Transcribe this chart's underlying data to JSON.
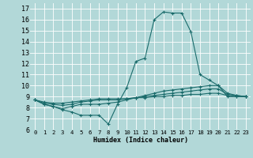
{
  "xlabel": "Humidex (Indice chaleur)",
  "ylabel": "",
  "background_color": "#b2d8d8",
  "grid_color": "#ffffff",
  "line_color": "#1a6b6b",
  "xlim": [
    -0.5,
    23.5
  ],
  "ylim": [
    6.0,
    17.5
  ],
  "xticks": [
    0,
    1,
    2,
    3,
    4,
    5,
    6,
    7,
    8,
    9,
    10,
    11,
    12,
    13,
    14,
    15,
    16,
    17,
    18,
    19,
    20,
    21,
    22,
    23
  ],
  "yticks": [
    6,
    7,
    8,
    9,
    10,
    11,
    12,
    13,
    14,
    15,
    16,
    17
  ],
  "series": [
    [
      8.7,
      8.3,
      8.1,
      7.8,
      7.6,
      7.3,
      7.3,
      7.3,
      6.5,
      8.3,
      9.8,
      12.2,
      12.5,
      16.0,
      16.7,
      16.6,
      16.6,
      14.9,
      11.0,
      10.5,
      10.0,
      9.0,
      9.0,
      9.0
    ],
    [
      8.7,
      8.3,
      8.1,
      7.9,
      8.1,
      8.3,
      8.3,
      8.3,
      8.4,
      8.5,
      8.7,
      8.9,
      9.1,
      9.3,
      9.5,
      9.6,
      9.7,
      9.8,
      9.9,
      10.0,
      10.0,
      9.3,
      9.1,
      9.0
    ],
    [
      8.7,
      8.4,
      8.3,
      8.2,
      8.3,
      8.5,
      8.6,
      8.7,
      8.7,
      8.7,
      8.8,
      8.9,
      9.0,
      9.1,
      9.2,
      9.3,
      9.4,
      9.5,
      9.6,
      9.7,
      9.7,
      9.2,
      9.1,
      9.0
    ],
    [
      8.7,
      8.5,
      8.4,
      8.4,
      8.5,
      8.6,
      8.7,
      8.8,
      8.8,
      8.8,
      8.8,
      8.9,
      8.9,
      9.0,
      9.0,
      9.1,
      9.1,
      9.2,
      9.2,
      9.3,
      9.3,
      9.1,
      9.0,
      9.0
    ]
  ],
  "xlabel_fontsize": 6.0,
  "ytick_fontsize": 6.0,
  "xtick_fontsize": 5.2
}
